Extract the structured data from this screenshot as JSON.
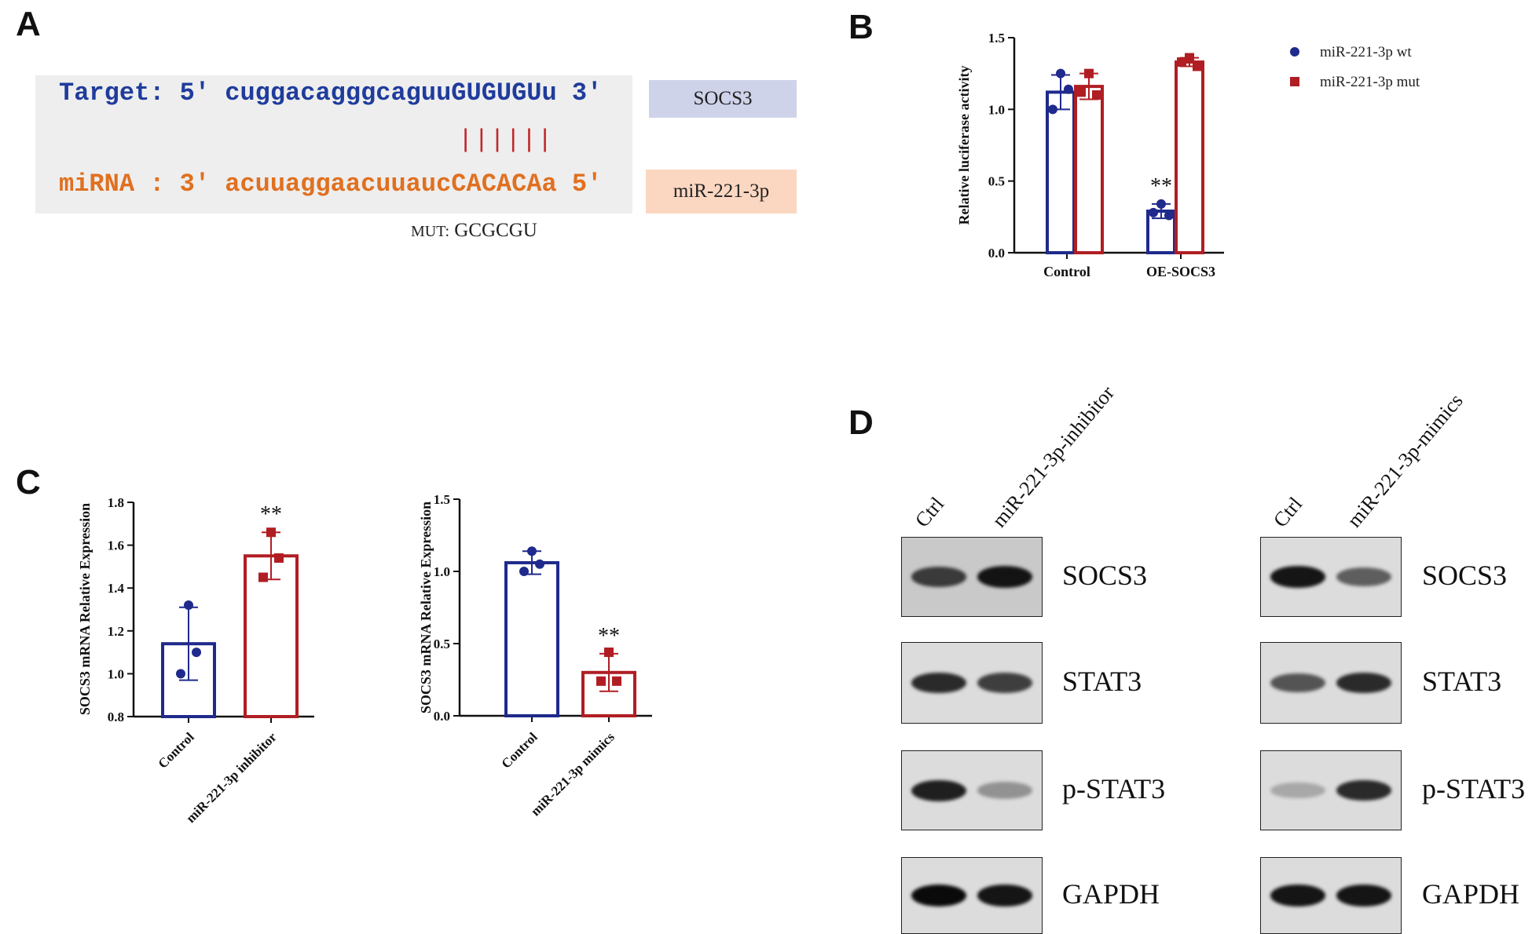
{
  "panels": {
    "a": "A",
    "b": "B",
    "c": "C",
    "d": "D"
  },
  "panel_a": {
    "target_line": "Target: 5' cuggacagggcaguuGUGUGUu 3'",
    "mirna_line": "miRNA : 3' acuuaggaacuuaucCACACAa 5'",
    "pairing": "||||||",
    "mut_prefix": "MUT:",
    "mut_seq": "GCGCGU",
    "target_tag": "SOCS3",
    "mirna_tag": "miR-221-3p",
    "colors": {
      "target": "#1f3c9c",
      "mirna": "#e07020",
      "pairing": "#c0282a",
      "box_bg": "#eeeeee",
      "target_tag_bg": "#cfd3ea",
      "mirna_tag_bg": "#fbd7c2"
    }
  },
  "panel_d": {
    "left_columns": [
      "Ctrl",
      "miR-221-3p-inhibitor"
    ],
    "right_columns": [
      "Ctrl",
      "miR-221-3p-mimics"
    ],
    "proteins": [
      "SOCS3",
      "STAT3",
      "p-STAT3",
      "GAPDH"
    ],
    "band_intensity_left": [
      [
        0.75,
        0.95
      ],
      [
        0.85,
        0.75
      ],
      [
        0.9,
        0.35
      ],
      [
        1.0,
        0.95
      ]
    ],
    "band_intensity_right": [
      [
        0.95,
        0.6
      ],
      [
        0.65,
        0.85
      ],
      [
        0.25,
        0.85
      ],
      [
        0.95,
        0.95
      ]
    ]
  },
  "chart_data": [
    {
      "type": "bar",
      "panel": "B",
      "categories": [
        "Control",
        "OE-SOCS3"
      ],
      "ylabel": "Relative luciferase activity",
      "xlabel": "",
      "ylim": [
        0,
        1.5
      ],
      "yticks": [
        "0.0",
        "0.5",
        "1.0",
        "1.5"
      ],
      "series": [
        {
          "name": "miR-221-3p wt",
          "values": [
            1.12,
            0.29
          ],
          "errors": [
            0.12,
            0.05
          ],
          "points": [
            [
              1.25,
              1.14,
              1.0
            ],
            [
              0.34,
              0.26,
              0.28
            ]
          ],
          "color": "#1f2a8c",
          "marker": "circle"
        },
        {
          "name": "miR-221-3p mut",
          "values": [
            1.16,
            1.33
          ],
          "errors": [
            0.09,
            0.03
          ],
          "points": [
            [
              1.25,
              1.1,
              1.12
            ],
            [
              1.36,
              1.3,
              1.33
            ]
          ],
          "color": "#b01e23",
          "marker": "square"
        }
      ],
      "annotations": [
        {
          "category": "OE-SOCS3",
          "series": 0,
          "text": "**"
        }
      ],
      "legend_position": "top-right"
    },
    {
      "type": "bar",
      "panel": "C-left",
      "categories": [
        "Control",
        "miR-221-3p inhibitor"
      ],
      "ylabel": "SOCS3 mRNA Relative Expression",
      "xlabel": "",
      "ylim": [
        0.8,
        1.8
      ],
      "yticks": [
        "0.8",
        "1.0",
        "1.2",
        "1.4",
        "1.6",
        "1.8"
      ],
      "series": [
        {
          "values": [
            1.14,
            1.55
          ],
          "errors": [
            0.17,
            0.11
          ],
          "points": [
            [
              1.32,
              1.1,
              1.0
            ],
            [
              1.66,
              1.54,
              1.45
            ]
          ],
          "colors": [
            "#1f2a8c",
            "#b01e23"
          ]
        }
      ],
      "annotations": [
        {
          "category": "miR-221-3p inhibitor",
          "text": "**"
        }
      ]
    },
    {
      "type": "bar",
      "panel": "C-right",
      "categories": [
        "Control",
        "miR-221-3p mimics"
      ],
      "ylabel": "SOCS3 mRNA Relative Expression",
      "xlabel": "",
      "ylim": [
        0,
        1.5
      ],
      "yticks": [
        "0.0",
        "0.5",
        "1.0",
        "1.5"
      ],
      "series": [
        {
          "values": [
            1.06,
            0.3
          ],
          "errors": [
            0.08,
            0.13
          ],
          "points": [
            [
              1.14,
              1.05,
              1.0
            ],
            [
              0.44,
              0.24,
              0.24
            ]
          ],
          "colors": [
            "#1f2a8c",
            "#b01e23"
          ]
        }
      ],
      "annotations": [
        {
          "category": "miR-221-3p mimics",
          "text": "**"
        }
      ]
    }
  ]
}
